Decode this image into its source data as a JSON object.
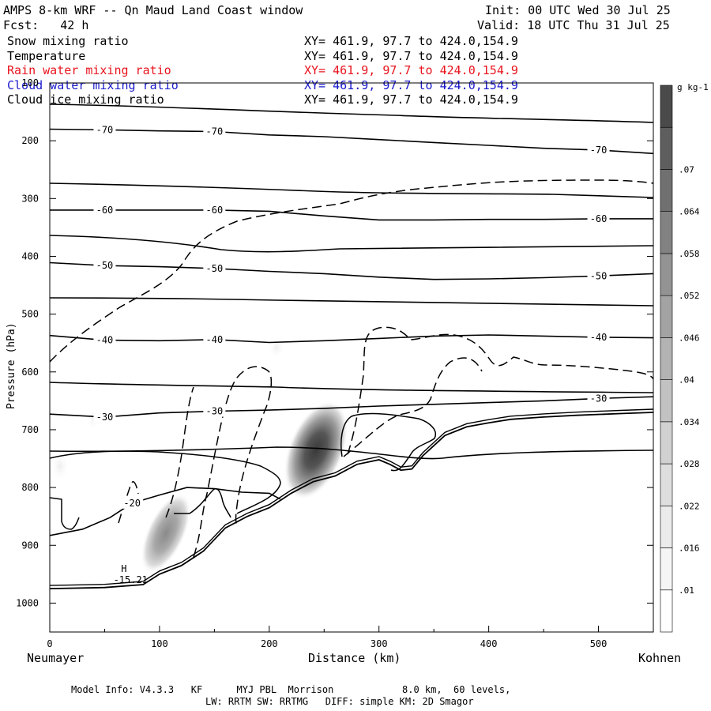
{
  "header": {
    "title": "AMPS 8-km WRF -- Qn Maud Land Coast window",
    "fcst": "Fcst:   42 h",
    "init": "Init: 00 UTC Wed 30 Jul 25",
    "valid": "Valid: 18 UTC Thu 31 Jul 25"
  },
  "fields": [
    {
      "label": "Snow mixing ratio",
      "xy": "XY= 461.9, 97.7 to 424.0,154.9",
      "color": "#000000"
    },
    {
      "label": "Temperature",
      "xy": "XY= 461.9, 97.7 to 424.0,154.9",
      "color": "#000000"
    },
    {
      "label": "Rain water mixing ratio",
      "xy": "XY= 461.9, 97.7 to 424.0,154.9",
      "color": "#e8141e"
    },
    {
      "label": "Cloud water mixing ratio",
      "xy": "XY= 461.9, 97.7 to 424.0,154.9",
      "color": "#1a1acc"
    },
    {
      "label": "Cloud ice mixing ratio",
      "xy": "XY= 461.9, 97.7 to 424.0,154.9",
      "color": "#000000"
    }
  ],
  "footer": {
    "line1": "Model Info: V4.3.3   KF      MYJ PBL  Morrison            8.0 km,  60 levels,",
    "line2": "LW: RRTM SW: RRTMG   DIFF: simple KM: 2D Smagor"
  },
  "chart_data": {
    "type": "contour",
    "xlabel": "Distance (km)",
    "ylabel": "Pressure (hPa)",
    "xlim": [
      0,
      550
    ],
    "ylim": [
      1050,
      100
    ],
    "y_log": false,
    "x_ticks": [
      0,
      100,
      200,
      300,
      400,
      500
    ],
    "y_ticks": [
      100,
      200,
      300,
      400,
      500,
      600,
      700,
      800,
      900,
      1000
    ],
    "left_endpoint": "Neumayer",
    "right_endpoint": "Kohnen",
    "colorbar": {
      "units": "g kg-1",
      "ticks": [
        ".01",
        ".016",
        ".022",
        ".028",
        ".034",
        ".04",
        ".046",
        ".052",
        ".058",
        ".064",
        ".07"
      ],
      "colors": [
        "#ffffff",
        "#f5f5f5",
        "#ebebeb",
        "#dedede",
        "#d1d1d1",
        "#c2c2c2",
        "#b3b3b3",
        "#a3a3a3",
        "#939393",
        "#828282",
        "#707070",
        "#5e5e5e",
        "#4a4a4a"
      ]
    },
    "terrain_hpa": [
      [
        0,
        975
      ],
      [
        50,
        973
      ],
      [
        85,
        968
      ],
      [
        100,
        950
      ],
      [
        120,
        935
      ],
      [
        140,
        910
      ],
      [
        160,
        870
      ],
      [
        180,
        850
      ],
      [
        200,
        835
      ],
      [
        220,
        810
      ],
      [
        240,
        790
      ],
      [
        260,
        780
      ],
      [
        280,
        760
      ],
      [
        300,
        752
      ],
      [
        310,
        760
      ],
      [
        320,
        770
      ],
      [
        330,
        768
      ],
      [
        340,
        745
      ],
      [
        360,
        710
      ],
      [
        380,
        695
      ],
      [
        400,
        688
      ],
      [
        420,
        682
      ],
      [
        450,
        678
      ],
      [
        480,
        675
      ],
      [
        520,
        672
      ],
      [
        550,
        670
      ]
    ],
    "temperature_contours": [
      {
        "label": "-70",
        "points": [
          [
            0,
            180
          ],
          [
            50,
            181
          ],
          [
            100,
            183
          ],
          [
            150,
            184
          ],
          [
            200,
            190
          ],
          [
            250,
            193
          ],
          [
            300,
            198
          ],
          [
            350,
            203
          ],
          [
            400,
            208
          ],
          [
            450,
            213
          ],
          [
            500,
            216
          ],
          [
            550,
            222
          ]
        ]
      },
      {
        "label": "-60",
        "points": [
          [
            0,
            320
          ],
          [
            50,
            320
          ],
          [
            100,
            320
          ],
          [
            150,
            320
          ],
          [
            200,
            322
          ],
          [
            250,
            330
          ],
          [
            300,
            337
          ],
          [
            350,
            337
          ],
          [
            400,
            336
          ],
          [
            450,
            336
          ],
          [
            500,
            335
          ],
          [
            550,
            335
          ]
        ]
      },
      {
        "label": "-50",
        "points": [
          [
            0,
            411
          ],
          [
            50,
            416
          ],
          [
            100,
            418
          ],
          [
            150,
            421
          ],
          [
            200,
            426
          ],
          [
            250,
            430
          ],
          [
            300,
            436
          ],
          [
            350,
            440
          ],
          [
            400,
            439
          ],
          [
            450,
            437
          ],
          [
            500,
            434
          ],
          [
            550,
            430
          ]
        ]
      },
      {
        "label": "-40",
        "points": [
          [
            0,
            537
          ],
          [
            50,
            545
          ],
          [
            100,
            546
          ],
          [
            150,
            544
          ],
          [
            200,
            549
          ],
          [
            250,
            546
          ],
          [
            300,
            542
          ],
          [
            350,
            538
          ],
          [
            400,
            536
          ],
          [
            450,
            538
          ],
          [
            500,
            540
          ],
          [
            550,
            541
          ]
        ]
      },
      {
        "label": "-30",
        "points": [
          [
            0,
            673
          ],
          [
            50,
            678
          ],
          [
            100,
            671
          ],
          [
            150,
            668
          ],
          [
            200,
            666
          ],
          [
            250,
            663
          ],
          [
            300,
            659
          ],
          [
            350,
            656
          ],
          [
            400,
            653
          ],
          [
            450,
            650
          ],
          [
            500,
            646
          ],
          [
            550,
            643
          ]
        ]
      },
      {
        "label": "-20",
        "points": [
          [
            0,
            883
          ],
          [
            30,
            872
          ],
          [
            55,
            852
          ],
          [
            75,
            827
          ],
          [
            100,
            813
          ],
          [
            125,
            800
          ],
          [
            150,
            802
          ],
          [
            175,
            808
          ],
          [
            200,
            810
          ],
          [
            210,
            820
          ]
        ]
      }
    ],
    "cloud_maxima": [
      {
        "x_km": 240,
        "p_hpa": 740,
        "value": 0.07
      },
      {
        "x_km": 105,
        "p_hpa": 880,
        "value": 0.045
      }
    ],
    "annotations": [
      {
        "text": "H",
        "x_km": 65,
        "p_hpa": 946
      },
      {
        "text": "-15.21",
        "x_km": 58,
        "p_hpa": 965
      }
    ]
  }
}
